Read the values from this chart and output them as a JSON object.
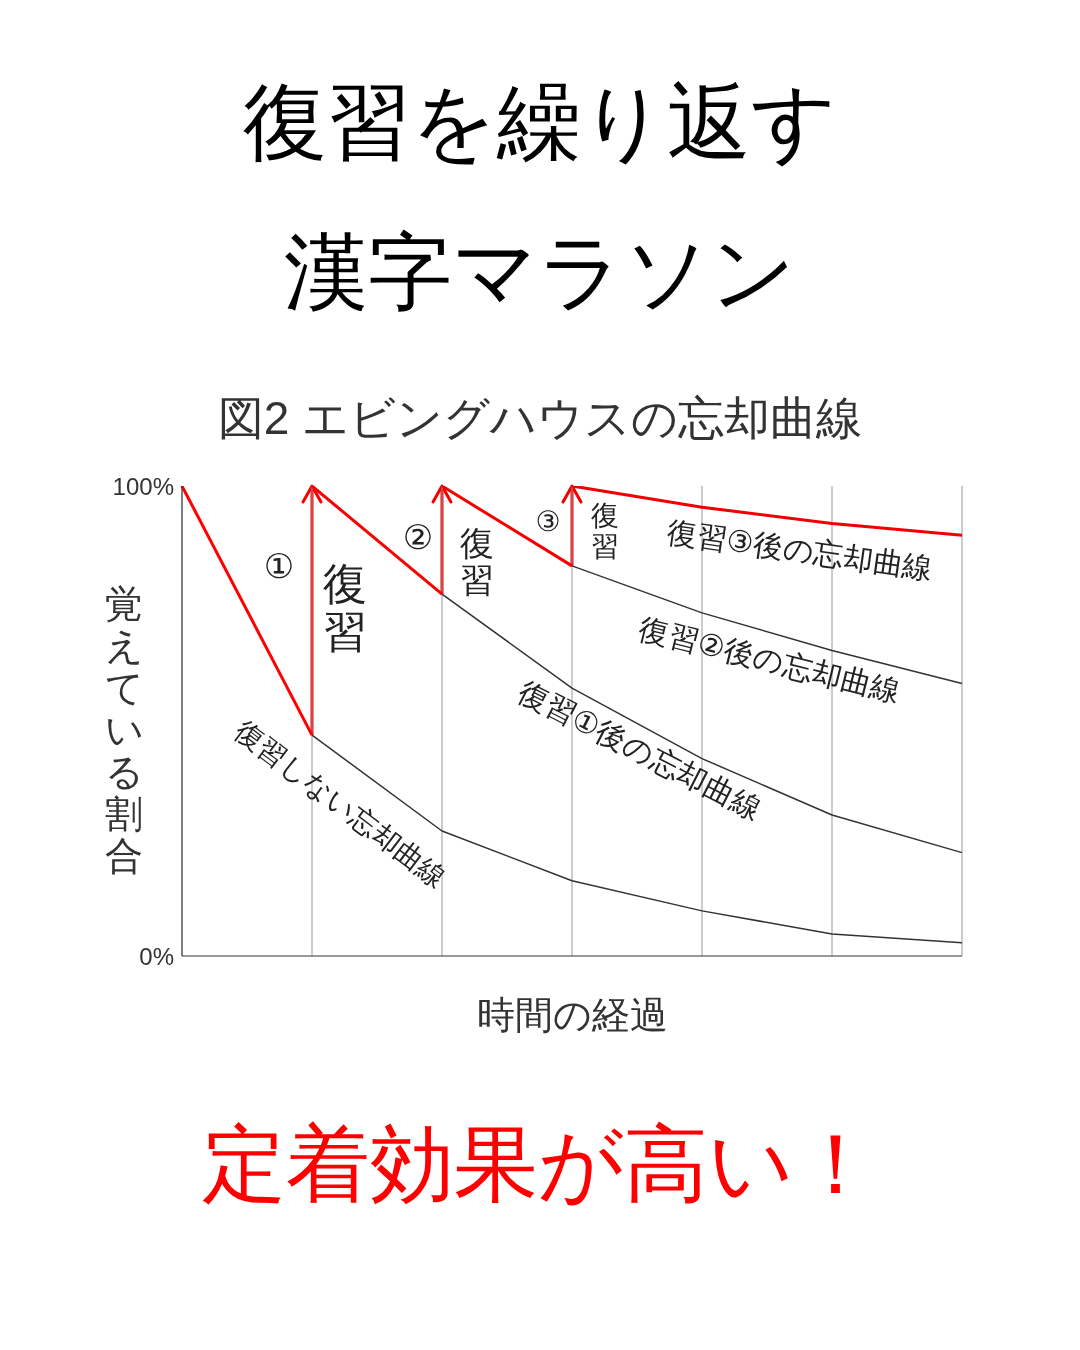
{
  "chart_data": {
    "type": "line",
    "title": "復習を繰り返す漢字マラソン",
    "subtitle": "図2 エビングハウスの忘却曲線",
    "xlabel": "時間の経過",
    "ylabel": "覚えている割合",
    "categories": [
      null,
      null,
      null,
      null,
      null,
      null,
      null
    ],
    "ylim": [
      0,
      100
    ],
    "yticks": [
      {
        "value": 0,
        "label": "0%"
      },
      {
        "value": 100,
        "label": "100%"
      }
    ],
    "tick_labels": "y",
    "grid": "x",
    "marker": "none",
    "line_style": "solid",
    "series": [
      {
        "color": "#333333",
        "values": [
          null,
          47,
          26.6,
          16,
          9.6,
          4.7,
          2.8
        ]
      },
      {
        "color": "#333333",
        "values": [
          null,
          null,
          77,
          57,
          42,
          30,
          22
        ]
      },
      {
        "color": "#333333",
        "values": [
          null,
          null,
          null,
          83,
          73,
          65,
          58
        ]
      },
      {
        "color": "#ff0000",
        "values": [
          100,
          47,
          null,
          null,
          null,
          null,
          null
        ]
      },
      {
        "color": "#fa0000",
        "values": [
          null,
          100,
          77,
          null,
          null,
          null,
          null
        ]
      },
      {
        "color": "#f50000",
        "values": [
          null,
          null,
          100,
          83,
          null,
          null,
          null
        ]
      },
      {
        "color": "#f00000",
        "values": [
          null,
          null,
          null,
          100,
          95.5,
          92,
          89.5
        ]
      }
    ],
    "annotations": [
      "①",
      "復習",
      "②",
      "復習",
      "③",
      "復習",
      "復習③後の忘却曲線",
      "復習②後の忘却曲線",
      "復習①後の忘却曲線",
      "復習しない忘却曲線",
      "定着効果が高い！"
    ]
  }
}
